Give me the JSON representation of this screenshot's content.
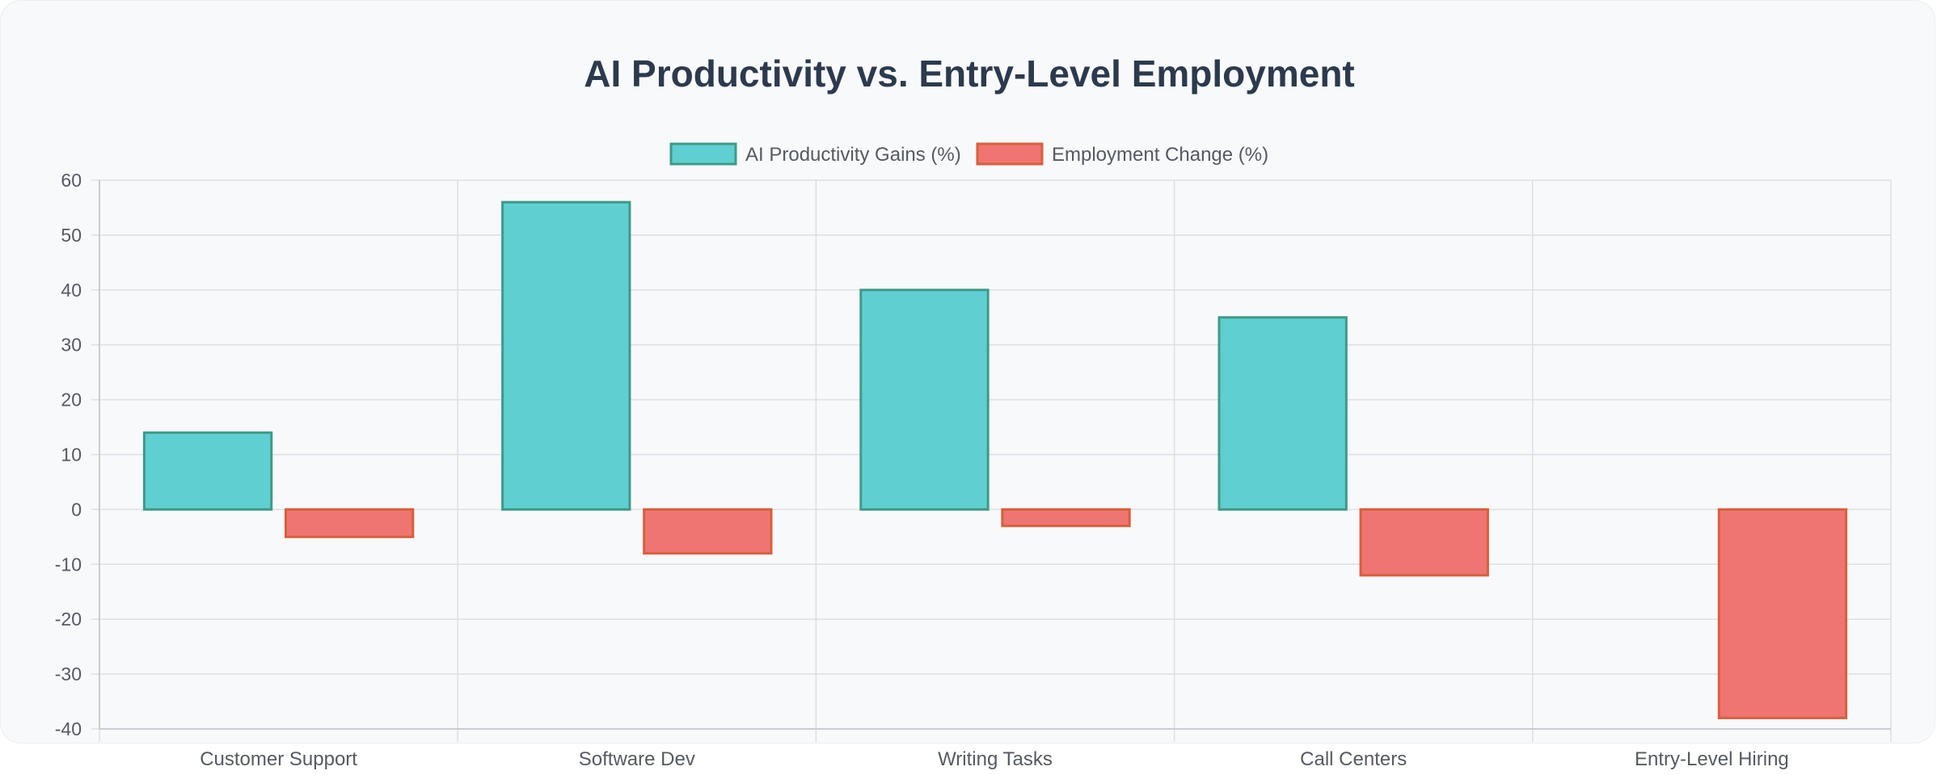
{
  "chart_data": {
    "type": "bar",
    "title": "AI Productivity vs. Entry-Level Employment",
    "categories": [
      "Customer Support",
      "Software Dev",
      "Writing Tasks",
      "Call Centers",
      "Entry-Level Hiring"
    ],
    "series": [
      {
        "name": "AI Productivity Gains (%)",
        "values": [
          14,
          56,
          40,
          35,
          null
        ],
        "fill": "#5fcfd2",
        "stroke": "#3f9a87"
      },
      {
        "name": "Employment Change (%)",
        "values": [
          -5,
          -8,
          -3,
          -12,
          -38
        ],
        "fill": "#ee7572",
        "stroke": "#d9603a"
      }
    ],
    "ylim": [
      -40,
      60
    ],
    "yticks": [
      60,
      50,
      40,
      30,
      20,
      10,
      0,
      -10,
      -20,
      -30,
      -40
    ],
    "grid": true,
    "legend_position": "top-center",
    "xlabel": "",
    "ylabel": ""
  }
}
